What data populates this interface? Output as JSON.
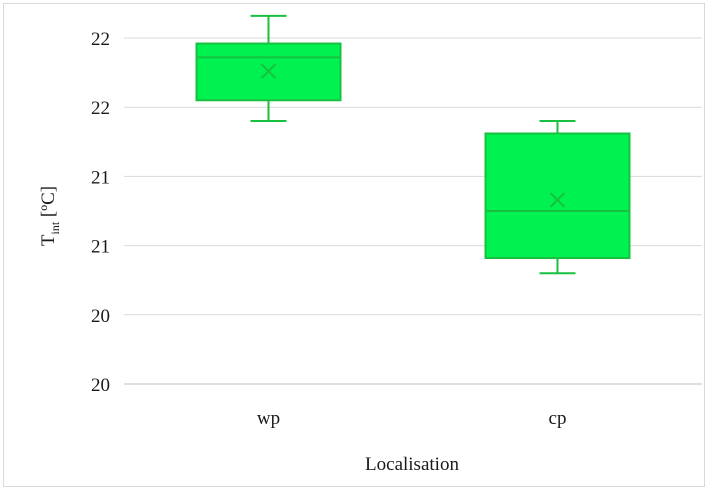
{
  "chart_data": {
    "type": "boxplot",
    "xlabel": "Localisation",
    "ylabel": {
      "main": "T",
      "subscript": "int",
      "unit": " [ºC]"
    },
    "ylim": [
      20.0,
      22.5
    ],
    "ytick_values": [
      20.0,
      20.5,
      21.0,
      21.5,
      22.0,
      22.5
    ],
    "ytick_labels": [
      "20",
      "20",
      "21",
      "21",
      "22",
      "22"
    ],
    "grid": true,
    "legend": "none",
    "colors": {
      "box_fill": "#00f250",
      "box_stroke": "#18c040",
      "grid": "#d9d9d9",
      "axis": "#bfbfbf"
    },
    "categories": [
      "wp",
      "cp"
    ],
    "boxes": [
      {
        "category": "wp",
        "whisker_low": 21.9,
        "q1": 22.05,
        "median": 22.36,
        "q3": 22.46,
        "whisker_high": 22.66,
        "mean": 22.26
      },
      {
        "category": "cp",
        "whisker_low": 20.8,
        "q1": 20.91,
        "median": 21.25,
        "q3": 21.81,
        "whisker_high": 21.9,
        "mean": 21.33
      }
    ]
  }
}
